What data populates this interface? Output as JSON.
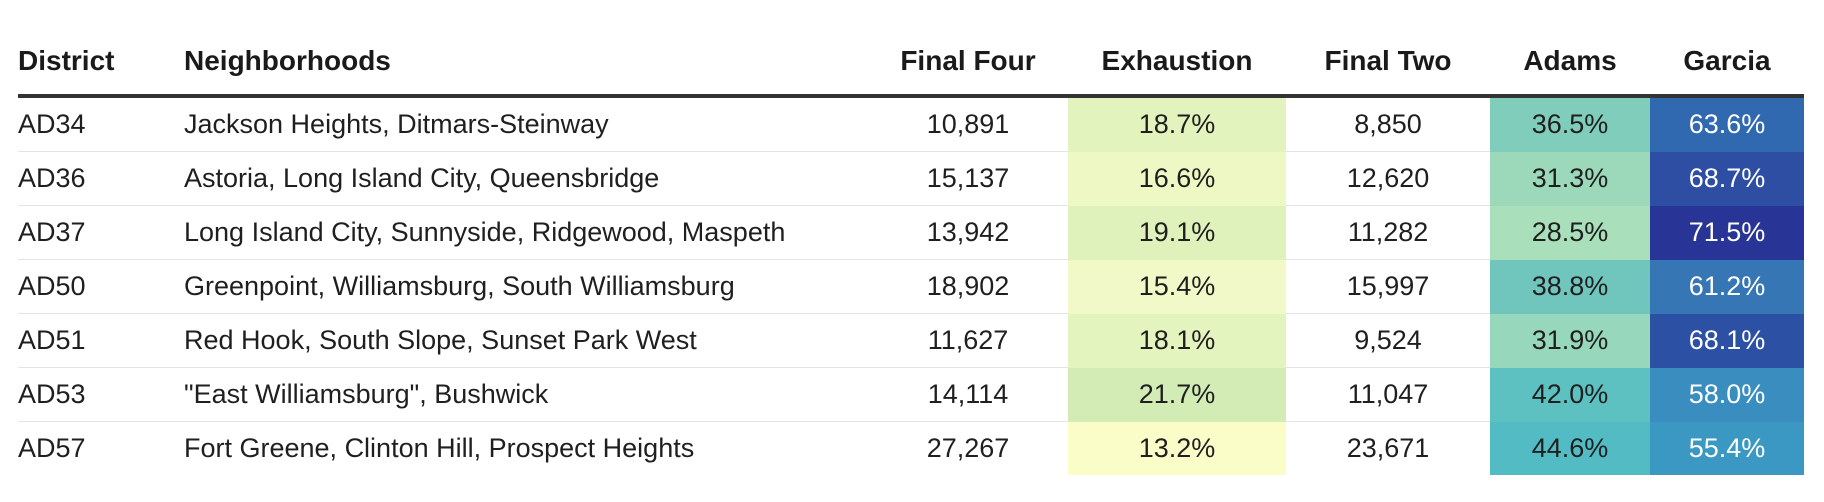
{
  "chart_data": {
    "type": "table",
    "columns": [
      "District",
      "Neighborhoods",
      "Final Four",
      "Exhaustion",
      "Final Two",
      "Adams",
      "Garcia"
    ],
    "rows": [
      {
        "district": "AD34",
        "neighborhoods": "Jackson Heights, Ditmars-Steinway",
        "final_four": "10,891",
        "exhaustion": "18.7%",
        "final_two": "8,850",
        "adams": "36.5%",
        "garcia": "63.6%"
      },
      {
        "district": "AD36",
        "neighborhoods": "Astoria, Long Island City, Queensbridge",
        "final_four": "15,137",
        "exhaustion": "16.6%",
        "final_two": "12,620",
        "adams": "31.3%",
        "garcia": "68.7%"
      },
      {
        "district": "AD37",
        "neighborhoods": "Long Island City, Sunnyside, Ridgewood, Maspeth",
        "final_four": "13,942",
        "exhaustion": "19.1%",
        "final_two": "11,282",
        "adams": "28.5%",
        "garcia": "71.5%"
      },
      {
        "district": "AD50",
        "neighborhoods": "Greenpoint, Williamsburg, South Williamsburg",
        "final_four": "18,902",
        "exhaustion": "15.4%",
        "final_two": "15,997",
        "adams": "38.8%",
        "garcia": "61.2%"
      },
      {
        "district": "AD51",
        "neighborhoods": "Red Hook, South Slope, Sunset Park West",
        "final_four": "11,627",
        "exhaustion": "18.1%",
        "final_two": "9,524",
        "adams": "31.9%",
        "garcia": "68.1%"
      },
      {
        "district": "AD53",
        "neighborhoods": "\"East Williamsburg\", Bushwick",
        "final_four": "14,114",
        "exhaustion": "21.7%",
        "final_two": "11,047",
        "adams": "42.0%",
        "garcia": "58.0%"
      },
      {
        "district": "AD57",
        "neighborhoods": "Fort Greene, Clinton Hill, Prospect Heights",
        "final_four": "27,267",
        "exhaustion": "13.2%",
        "final_two": "23,671",
        "adams": "44.6%",
        "garcia": "55.4%"
      }
    ],
    "cell_colors": {
      "exhaustion": [
        "#e2f3bd",
        "#eef8c5",
        "#dff2bb",
        "#f1f9c8",
        "#e3f4be",
        "#d3ecb6",
        "#fbfdc9"
      ],
      "adams": [
        "#80cdbc",
        "#9cd9bb",
        "#a9dfba",
        "#70c6bd",
        "#97d7bb",
        "#5dc0c1",
        "#52bbc3"
      ],
      "garcia": [
        "#3169b0",
        "#2d4ea3",
        "#283596",
        "#3676b4",
        "#2c51a4",
        "#3a8dbf",
        "#3a98c2"
      ]
    },
    "cell_text_colors": {
      "garcia": "#ffffff"
    }
  }
}
